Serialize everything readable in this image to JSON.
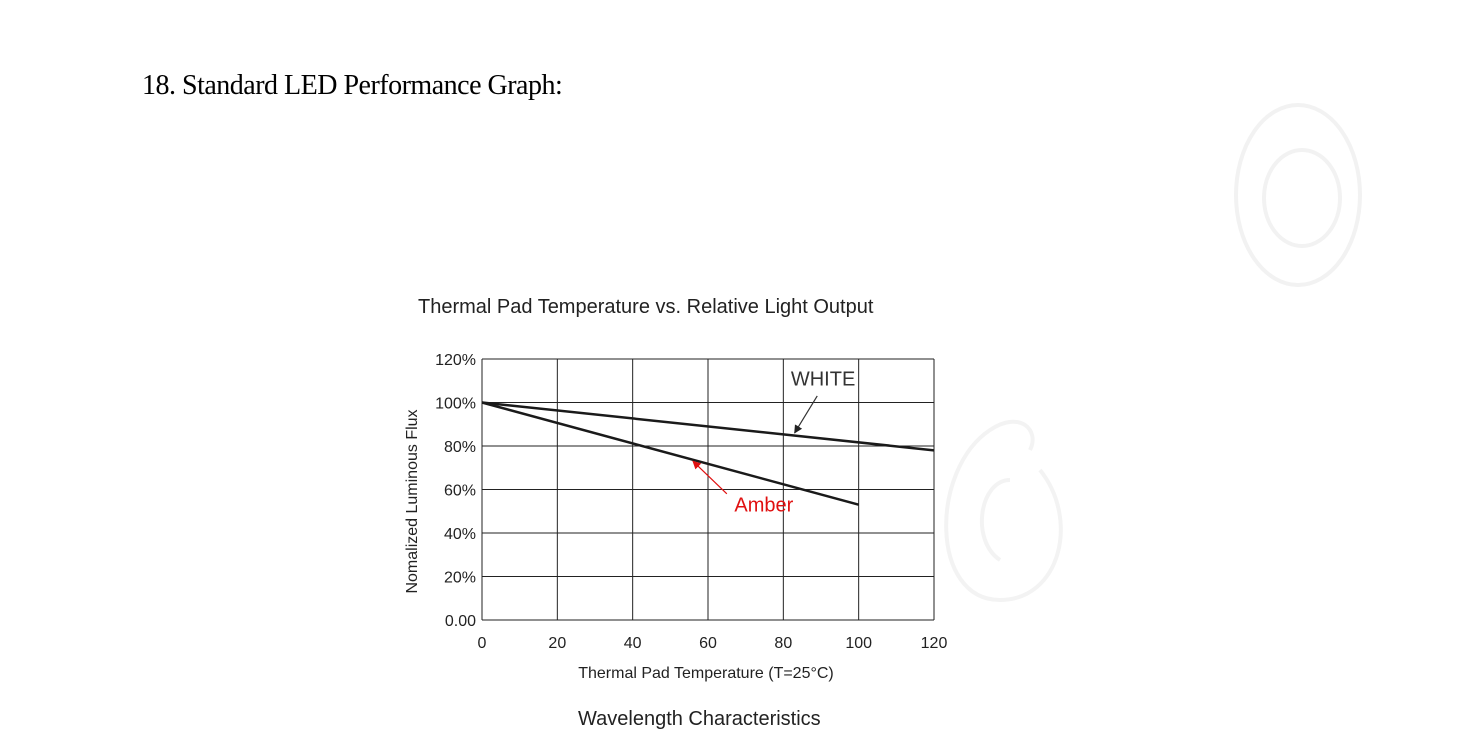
{
  "heading": "18. Standard LED Performance Graph:",
  "next_heading": "Wavelength Characteristics",
  "chart_data": {
    "type": "line",
    "title": "Thermal Pad Temperature vs. Relative Light Output",
    "xlabel": "Thermal Pad Temperature (T=25°C)",
    "ylabel": "Nomalized Luminous Flux",
    "xlim": [
      0,
      120
    ],
    "ylim": [
      0,
      120
    ],
    "x_ticks": [
      0,
      20,
      40,
      60,
      80,
      100,
      120
    ],
    "x_tick_labels": [
      "0",
      "20",
      "40",
      "60",
      "80",
      "100",
      "120"
    ],
    "y_ticks": [
      0,
      20,
      40,
      60,
      80,
      100,
      120
    ],
    "y_tick_labels": [
      "0.00",
      "20%",
      "40%",
      "60%",
      "80%",
      "100%",
      "120%"
    ],
    "grid": true,
    "series": [
      {
        "name": "WHITE",
        "x": [
          0,
          120
        ],
        "y": [
          100,
          78
        ],
        "color": "#1a1a1a",
        "label_color": "#333333",
        "label_at": [
          82,
          111
        ],
        "arrow_from": [
          89,
          103
        ],
        "arrow_to": [
          83,
          86
        ]
      },
      {
        "name": "Amber",
        "x": [
          0,
          100
        ],
        "y": [
          100,
          53
        ],
        "color": "#1a1a1a",
        "label_color": "#e01010",
        "label_at": [
          67,
          53
        ],
        "arrow_from": [
          65,
          58
        ],
        "arrow_to": [
          56,
          73
        ]
      }
    ]
  }
}
